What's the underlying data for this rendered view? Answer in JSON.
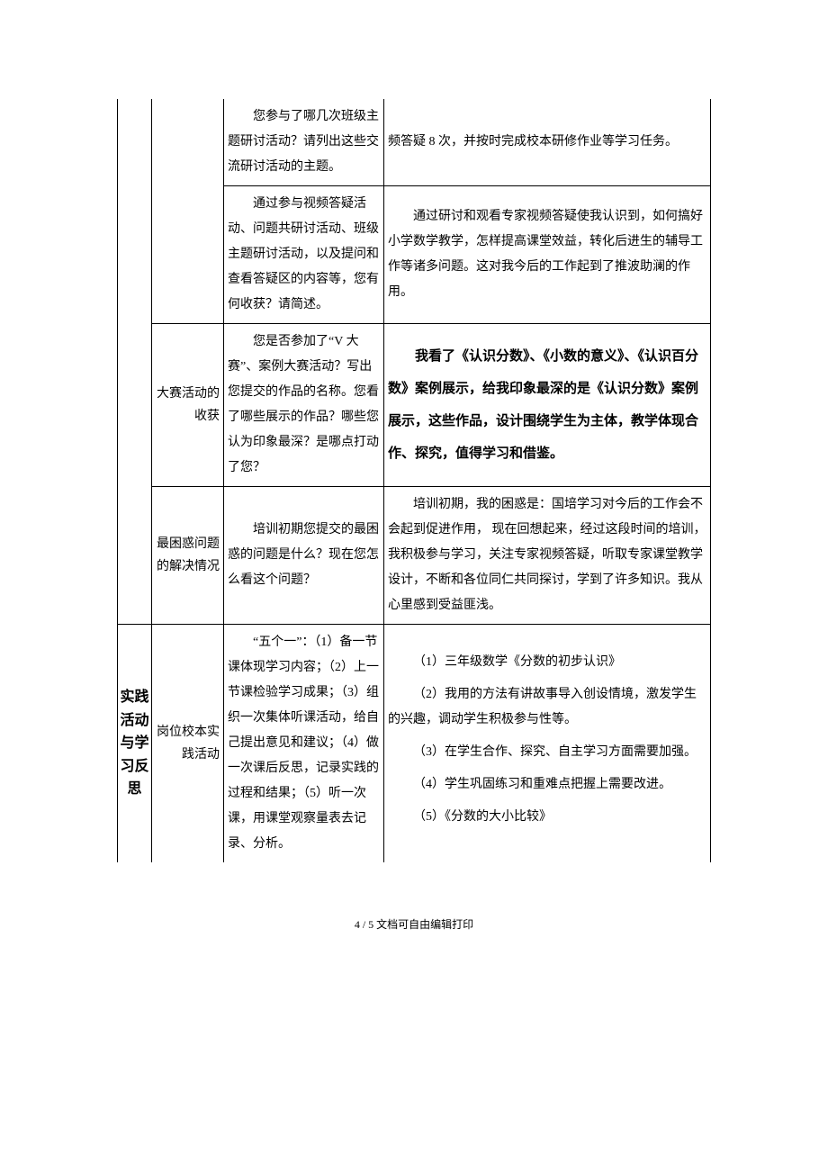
{
  "section1": {
    "row1": {
      "prompt": "您参与了哪几次班级主题研讨活动？请列出这些交流研讨活动的主题。",
      "answer": "频答疑 8 次，并按时完成校本研修作业等学习任务。"
    },
    "row2": {
      "prompt": "通过参与视频答疑活动、问题共研讨活动、班级主题研讨活动，以及提问和查看答疑区的内容等，您有何收获？请简述。",
      "answer": "通过研讨和观看专家视频答疑使我认识到，如何搞好小学数学教学，怎样提高课堂效益，转化后进生的辅导工作等诸多问题。这对我今后的工作起到了推波助澜的作用。"
    },
    "row3": {
      "label": "大赛活动的收获",
      "prompt": "您是否参加了“V 大赛”、案例大赛活动？写出您提交的作品的名称。您看了哪些展示的作品？哪些您认为印象最深？是哪点打动了您？",
      "answer": "我看了《认识分数》、《小数的意义》、《认识百分数》案例展示，给我印象最深的是《认识分数》案例展示，这些作品，设计围绕学生为主体，教学体现合作、探究，值得学习和借鉴。"
    },
    "row4": {
      "label": "最困惑问题的解决情况",
      "prompt": "培训初期您提交的最困惑的问题是什么？现在您怎么看这个问题？",
      "answer": "培训初期，我的困惑是：国培学习对今后的工作会不会起到促进作用， 现在回想起来，经过这段时间的培训，我积极参与学习，关注专家视频答疑，听取专家课堂教学设计，不断和各位同仁共同探讨，学到了许多知识。我从心里感到受益匪浅。"
    }
  },
  "section2": {
    "label": "实践活动与学习反思",
    "row1": {
      "label": "岗位校本实践活动",
      "prompt": "“五个一”：（1）备一节课体现学习内容；（2）上一节课检验学习成果；（3）组织一次集体听课活动，给自己提出意见和建议；（4）做一次课后反思，记录实践的过程和结果；（5）听一次课，用课堂观察量表去记录、分析。",
      "answer1": "（1）三年级数学《分数的初步认识》",
      "answer2": "（2）我用的方法有讲故事导入创设情境，激发学生的兴趣，调动学生积极参与性等。",
      "answer3": "（3）在学生合作、探究、自主学习方面需要加强。",
      "answer4": "（4）学生巩固练习和重难点把握上需要改进。",
      "answer5": "（5）《分数的大小比较》"
    }
  },
  "footer": "4 / 5 文档可自由编辑打印"
}
